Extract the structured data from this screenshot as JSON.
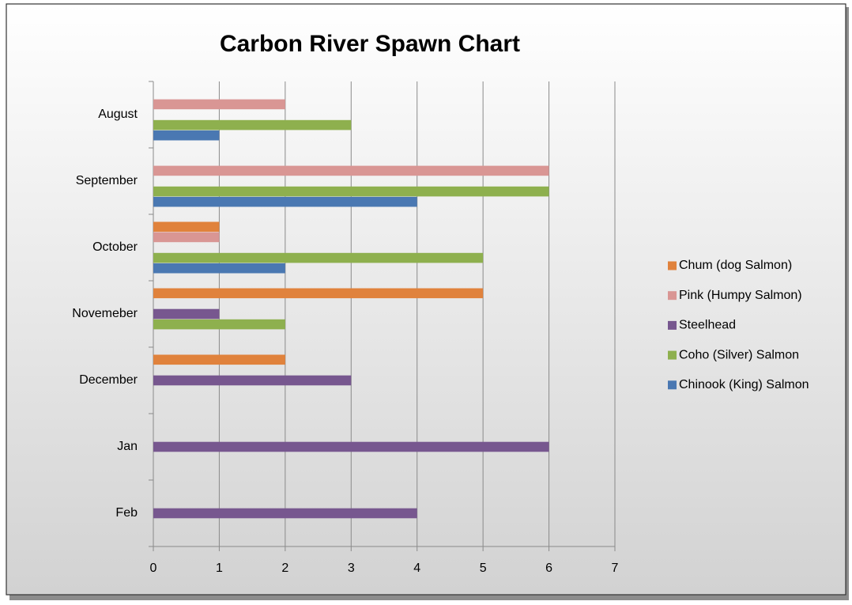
{
  "chart_data": {
    "type": "hbar",
    "title": "Carbon River Spawn Chart",
    "categories": [
      "August",
      "September",
      "October",
      "Novemeber",
      "December",
      "Jan",
      "Feb"
    ],
    "series": [
      {
        "name": "Chum (dog Salmon)",
        "color": "#e0823c",
        "values": [
          null,
          null,
          1,
          5,
          2,
          null,
          null
        ]
      },
      {
        "name": "Pink (Humpy Salmon)",
        "color": "#d99694",
        "values": [
          2,
          6,
          1,
          null,
          null,
          null,
          null
        ]
      },
      {
        "name": "Steelhead",
        "color": "#77578f",
        "values": [
          null,
          null,
          null,
          1,
          3,
          6,
          4
        ]
      },
      {
        "name": "Coho (Silver) Salmon",
        "color": "#8eb04e",
        "values": [
          3,
          6,
          5,
          2,
          null,
          null,
          null
        ]
      },
      {
        "name": "Chinook (King) Salmon",
        "color": "#4a78b2",
        "values": [
          1,
          4,
          2,
          null,
          null,
          null,
          null
        ]
      }
    ],
    "xlim": [
      0,
      7
    ],
    "xticks": [
      0,
      1,
      2,
      3,
      4,
      5,
      6,
      7
    ],
    "grid": true,
    "legend": "right"
  }
}
